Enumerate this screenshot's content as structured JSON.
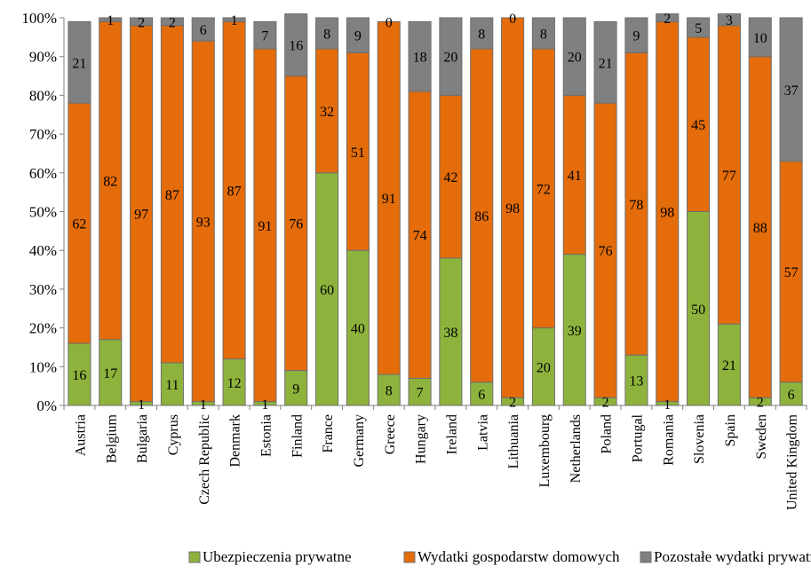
{
  "chart_data": {
    "type": "bar",
    "stacked": true,
    "normalized": true,
    "title": "",
    "xlabel": "",
    "ylabel": "",
    "ylim": [
      0,
      100
    ],
    "y_ticks": [
      "0%",
      "10%",
      "20%",
      "30%",
      "40%",
      "50%",
      "60%",
      "70%",
      "80%",
      "90%",
      "100%"
    ],
    "grid": false,
    "legend_position": "bottom",
    "categories": [
      "Austria",
      "Belgium",
      "Bulgaria",
      "Cyprus",
      "Czech Republic",
      "Denmark",
      "Estonia",
      "Finland",
      "France",
      "Germany",
      "Greece",
      "Hungary",
      "Ireland",
      "Latvia",
      "Lithuania",
      "Luxembourg",
      "Netherlands",
      "Poland",
      "Portugal",
      "Romania",
      "Slovenia",
      "Spain",
      "Sweden",
      "United Kingdom"
    ],
    "series": [
      {
        "name": "Ubezpieczenia prywatne",
        "color": "#8db33c",
        "values": [
          16,
          17,
          1,
          11,
          1,
          12,
          1,
          9,
          60,
          40,
          8,
          7,
          38,
          6,
          2,
          20,
          39,
          2,
          13,
          1,
          50,
          21,
          2,
          6
        ]
      },
      {
        "name": "Wydatki gospodarstw domowych",
        "color": "#e46c0a",
        "values": [
          62,
          82,
          97,
          87,
          93,
          87,
          91,
          76,
          32,
          51,
          91,
          74,
          42,
          86,
          98,
          72,
          41,
          76,
          78,
          98,
          45,
          77,
          88,
          57
        ]
      },
      {
        "name": "Pozostałe wydatki prywatne",
        "color": "#808080",
        "values": [
          21,
          1,
          2,
          2,
          6,
          1,
          7,
          16,
          8,
          9,
          0,
          18,
          20,
          8,
          0,
          8,
          20,
          21,
          9,
          2,
          5,
          3,
          10,
          37
        ]
      }
    ]
  }
}
